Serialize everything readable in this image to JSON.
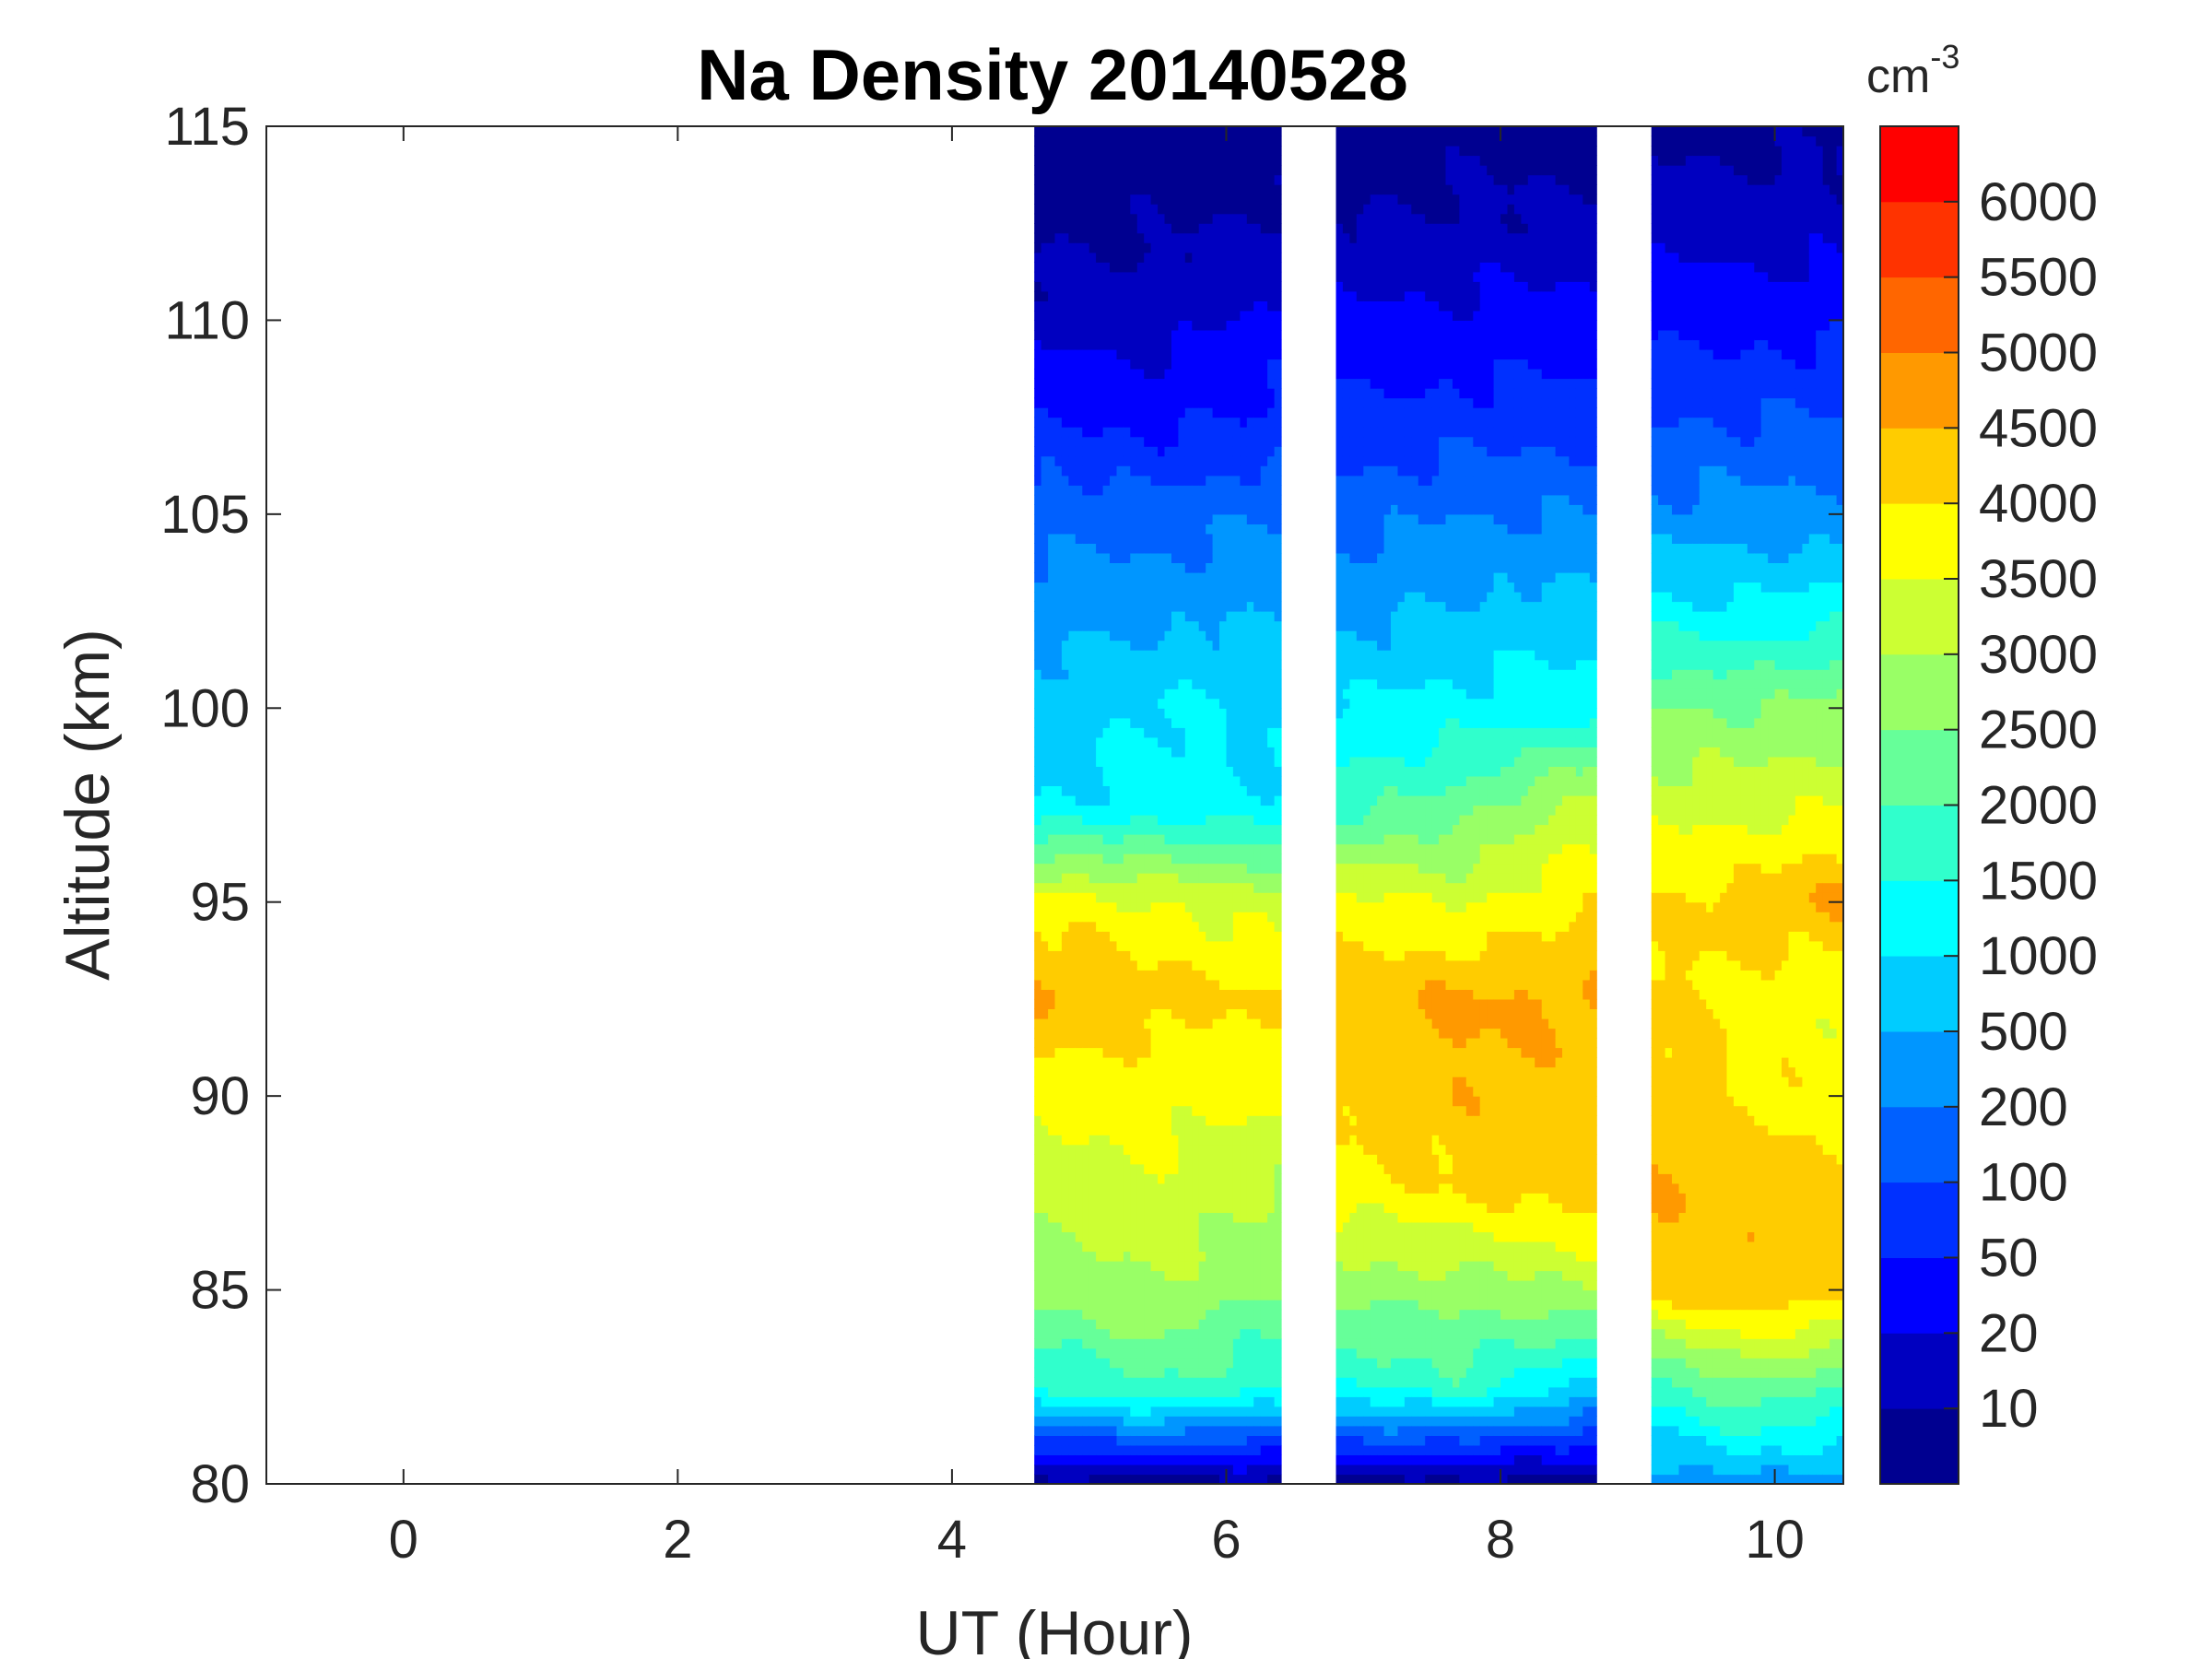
{
  "chart_data": {
    "type": "heatmap",
    "subtype": "filled-contour",
    "title": "Na Density 20140528",
    "xlabel": "UT (Hour)",
    "ylabel": "Altitude (km)",
    "xlim": [
      -1,
      10.5
    ],
    "ylim": [
      80,
      115
    ],
    "xticks": [
      0,
      2,
      4,
      6,
      8,
      10
    ],
    "yticks": [
      80,
      85,
      90,
      95,
      100,
      105,
      110,
      115
    ],
    "colorbar": {
      "unit_base": "cm",
      "unit_exp": "-3",
      "levels": [
        0,
        10,
        20,
        50,
        100,
        200,
        500,
        1000,
        1500,
        2000,
        2500,
        3000,
        3500,
        4000,
        4500,
        5000,
        5500,
        6000,
        6500
      ],
      "tick_labels": [
        "10",
        "20",
        "50",
        "100",
        "200",
        "500",
        "1000",
        "1500",
        "2000",
        "2500",
        "3000",
        "3500",
        "4000",
        "4500",
        "5000",
        "5500",
        "6000"
      ],
      "colors": [
        "#000090",
        "#0000C0",
        "#0000FF",
        "#0030FF",
        "#0060FF",
        "#0096FF",
        "#00CCFF",
        "#00FFFF",
        "#30FFCC",
        "#66FF99",
        "#99FF66",
        "#CCFF33",
        "#FFFF00",
        "#FFCC00",
        "#FF9900",
        "#FF6600",
        "#FF3300",
        "#FF0000"
      ]
    },
    "altitudes": [
      80,
      82.5,
      85,
      87.5,
      90,
      92.5,
      95,
      97.5,
      100,
      102.5,
      105,
      107.5,
      110,
      112.5,
      115
    ],
    "segments": [
      {
        "start": 4.6,
        "end": 6.4,
        "profiles": [
          {
            "t": 4.6,
            "values": [
              5,
              1500,
              2600,
              3200,
              3600,
              4600,
              3800,
              1000,
              700,
              400,
              150,
              60,
              15,
              8,
              5
            ]
          },
          {
            "t": 5.5,
            "values": [
              5,
              2000,
              3000,
              3400,
              3700,
              4200,
              3500,
              1200,
              1100,
              400,
              150,
              40,
              15,
              8,
              5
            ]
          },
          {
            "t": 6.4,
            "values": [
              5,
              1500,
              2400,
              3000,
              3600,
              4000,
              3200,
              1100,
              800,
              500,
              200,
              60,
              30,
              12,
              5
            ]
          }
        ]
      },
      {
        "start": 6.8,
        "end": 8.7,
        "profiles": [
          {
            "t": 6.8,
            "values": [
              5,
              1500,
              2700,
              3700,
              4200,
              4300,
              3700,
              1800,
              1000,
              400,
              150,
              60,
              25,
              10,
              5
            ]
          },
          {
            "t": 7.7,
            "values": [
              5,
              1800,
              2700,
              4000,
              4400,
              4600,
              3400,
              2200,
              1200,
              600,
              200,
              70,
              30,
              12,
              6
            ]
          },
          {
            "t": 8.7,
            "values": [
              5,
              800,
              3000,
              4300,
              4300,
              4500,
              4000,
              3300,
              1300,
              700,
              200,
              80,
              30,
              12,
              6
            ]
          }
        ]
      },
      {
        "start": 9.1,
        "end": 10.5,
        "profiles": [
          {
            "t": 9.1,
            "values": [
              300,
              1700,
              4200,
              4500,
              4300,
              4100,
              4000,
              3300,
              2500,
              1200,
              300,
              100,
              40,
              15,
              6
            ]
          },
          {
            "t": 9.8,
            "values": [
              400,
              2500,
              4400,
              4300,
              4000,
              3800,
              4200,
              3300,
              2500,
              1100,
              300,
              100,
              40,
              15,
              7
            ]
          },
          {
            "t": 10.5,
            "values": [
              300,
              2000,
              4300,
              4000,
              3800,
              3500,
              4600,
              3500,
              2700,
              1300,
              300,
              100,
              40,
              15,
              8
            ]
          }
        ]
      }
    ]
  }
}
